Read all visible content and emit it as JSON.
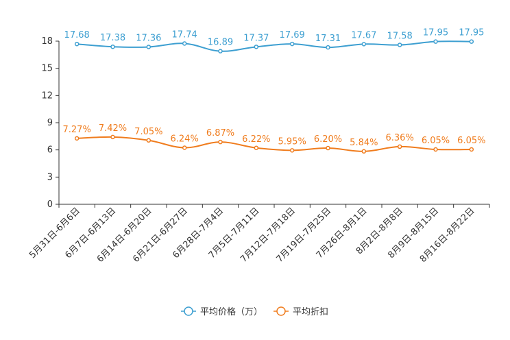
{
  "chart_data": {
    "type": "line",
    "title": "",
    "xlabel": "",
    "ylabel": "",
    "ylim": [
      0,
      18
    ],
    "yticks": [
      0,
      3,
      6,
      9,
      12,
      15,
      18
    ],
    "grid": false,
    "legend_position": "bottom-center",
    "categories": [
      "5月31日-6月6日",
      "6月7日-6月13日",
      "6月14日-6月20日",
      "6月21日-6月27日",
      "6月28日-7月4日",
      "7月5日-7月11日",
      "7月12日-7月18日",
      "7月19日-7月25日",
      "7月26日-8月1日",
      "8月2日-8月8日",
      "8月9日-8月15日",
      "8月16日-8月22日"
    ],
    "series": [
      {
        "name": "平均价格（万）",
        "color": "#3d9fd1",
        "values": [
          17.68,
          17.38,
          17.36,
          17.74,
          16.89,
          17.37,
          17.69,
          17.31,
          17.67,
          17.58,
          17.95,
          17.95
        ],
        "labels": [
          "17.68",
          "17.38",
          "17.36",
          "17.74",
          "16.89",
          "17.37",
          "17.69",
          "17.31",
          "17.67",
          "17.58",
          "17.95",
          "17.95"
        ]
      },
      {
        "name": "平均折扣",
        "color": "#f07c1d",
        "values": [
          7.27,
          7.42,
          7.05,
          6.24,
          6.87,
          6.22,
          5.95,
          6.2,
          5.84,
          6.36,
          6.05,
          6.05
        ],
        "labels": [
          "7.27%",
          "7.42%",
          "7.05%",
          "6.24%",
          "6.87%",
          "6.22%",
          "5.95%",
          "6.20%",
          "5.84%",
          "6.36%",
          "6.05%",
          "6.05%"
        ]
      }
    ]
  }
}
